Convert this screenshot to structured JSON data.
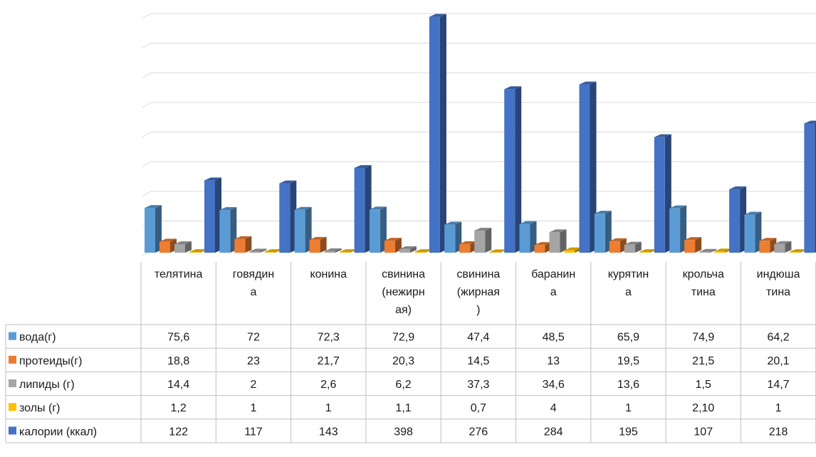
{
  "chart_data": {
    "type": "bar",
    "categories": [
      [
        "телятина"
      ],
      [
        "говядин",
        "а"
      ],
      [
        "конина"
      ],
      [
        "свинина",
        "(нежирн",
        "ая)"
      ],
      [
        "свинина",
        "(жирная",
        ")"
      ],
      [
        "баранин",
        "а"
      ],
      [
        "курятин",
        "а"
      ],
      [
        "крольча",
        "тина"
      ],
      [
        "индюша",
        "тина"
      ]
    ],
    "series": [
      {
        "name": "вода(г)",
        "color": "#5B9BD5",
        "values": [
          75.6,
          72,
          72.3,
          72.9,
          47.4,
          48.5,
          65.9,
          74.9,
          64.2
        ],
        "labels": [
          "75,6",
          "72",
          "72,3",
          "72,9",
          "47,4",
          "48,5",
          "65,9",
          "74,9",
          "64,2"
        ]
      },
      {
        "name": "протеиды(г)",
        "color": "#ED7D31",
        "values": [
          18.8,
          23,
          21.7,
          20.3,
          14.5,
          13,
          19.5,
          21.5,
          20.1
        ],
        "labels": [
          "18,8",
          "23",
          "21,7",
          "20,3",
          "14,5",
          "13",
          "19,5",
          "21,5",
          "20,1"
        ]
      },
      {
        "name": "липиды (г)",
        "color": "#A5A5A5",
        "values": [
          14.4,
          2,
          2.6,
          6.2,
          37.3,
          34.6,
          13.6,
          1.5,
          14.7
        ],
        "labels": [
          "14,4",
          "2",
          "2,6",
          "6,2",
          "37,3",
          "34,6",
          "13,6",
          "1,5",
          "14,7"
        ]
      },
      {
        "name": "золы (г)",
        "color": "#FFC000",
        "values": [
          1.2,
          1,
          1,
          1.1,
          0.7,
          4,
          1,
          2.1,
          1
        ],
        "labels": [
          "1,2",
          "1",
          "1",
          "1,1",
          "0,7",
          "4",
          "1",
          "2,10",
          "1"
        ]
      },
      {
        "name": "калории (ккал)",
        "color": "#4472C4",
        "values": [
          122,
          117,
          143,
          398,
          276,
          284,
          195,
          107,
          218
        ],
        "labels": [
          "122",
          "117",
          "143",
          "398",
          "276",
          "284",
          "195",
          "107",
          "218"
        ]
      }
    ],
    "ylim": [
      0,
      400
    ],
    "y_gridlines": [
      0,
      50,
      100,
      150,
      200,
      250,
      300,
      350,
      400
    ],
    "y_tick_labels_visible": false,
    "legend": "data-table-left",
    "style": "3d-clustered-column"
  }
}
